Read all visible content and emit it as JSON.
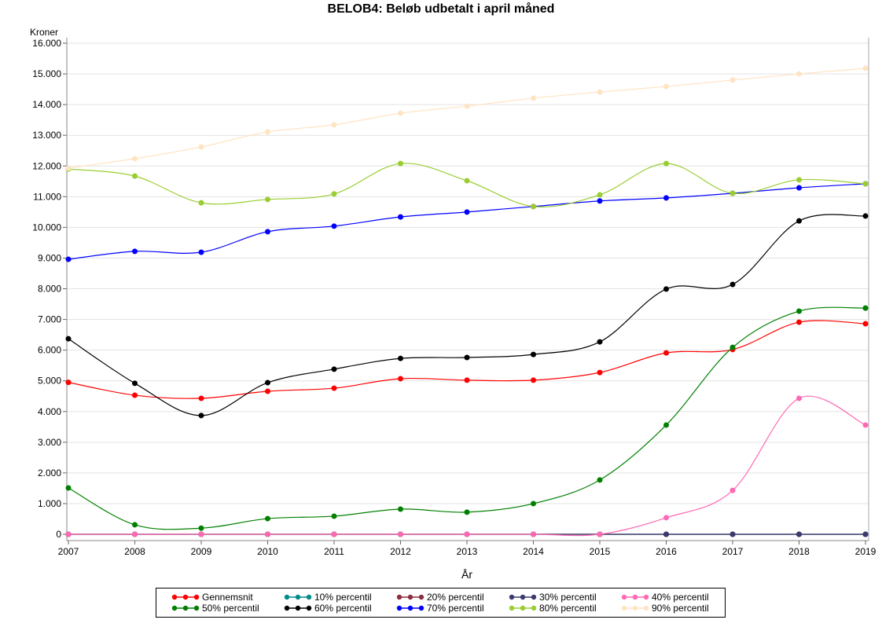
{
  "chart_data": {
    "type": "line",
    "title": "BELOB4: Beløb udbetalt i april måned",
    "xlabel": "År",
    "ylabel": "Kroner",
    "x": [
      2007,
      2008,
      2009,
      2010,
      2011,
      2012,
      2013,
      2014,
      2015,
      2016,
      2017,
      2018,
      2019
    ],
    "ylim": [
      0,
      16000
    ],
    "yticks": [
      0,
      1000,
      2000,
      3000,
      4000,
      5000,
      6000,
      7000,
      8000,
      9000,
      10000,
      11000,
      12000,
      13000,
      14000,
      15000,
      16000
    ],
    "ytick_labels": [
      "0",
      "1.000",
      "2.000",
      "3.000",
      "4.000",
      "5.000",
      "6.000",
      "7.000",
      "8.000",
      "9.000",
      "10.000",
      "11.000",
      "12.000",
      "13.000",
      "14.000",
      "15.000",
      "16.000"
    ],
    "grid": true,
    "smoothed": true,
    "legend_position": "bottom",
    "series": [
      {
        "name": "Gennemsnit",
        "color": "#ff0000",
        "values": [
          4950,
          4530,
          4430,
          4660,
          4760,
          5070,
          5020,
          5020,
          5270,
          5910,
          6020,
          6910,
          6860
        ]
      },
      {
        "name": "10% percentil",
        "color": "#008b8b",
        "values": [
          0,
          0,
          0,
          0,
          0,
          0,
          0,
          0,
          0,
          0,
          0,
          0,
          0
        ]
      },
      {
        "name": "20% percentil",
        "color": "#8b2e3f",
        "values": [
          0,
          0,
          0,
          0,
          0,
          0,
          0,
          0,
          0,
          0,
          0,
          0,
          0
        ]
      },
      {
        "name": "30% percentil",
        "color": "#3a3a6e",
        "values": [
          0,
          0,
          0,
          0,
          0,
          0,
          0,
          0,
          0,
          0,
          0,
          0,
          0
        ]
      },
      {
        "name": "40% percentil",
        "color": "#ff69b4",
        "values": [
          0,
          0,
          0,
          0,
          0,
          0,
          0,
          0,
          0,
          540,
          1430,
          4430,
          3560
        ]
      },
      {
        "name": "50% percentil",
        "color": "#008000",
        "values": [
          1510,
          310,
          200,
          510,
          590,
          820,
          720,
          1000,
          1770,
          3560,
          6090,
          7270,
          7370
        ]
      },
      {
        "name": "60% percentil",
        "color": "#000000",
        "values": [
          6370,
          4920,
          3870,
          4940,
          5380,
          5730,
          5760,
          5860,
          6270,
          7990,
          8140,
          10210,
          10370
        ]
      },
      {
        "name": "70% percentil",
        "color": "#0000ff",
        "values": [
          8960,
          9220,
          9190,
          9860,
          10040,
          10340,
          10500,
          10680,
          10860,
          10960,
          11110,
          11290,
          11420
        ]
      },
      {
        "name": "80% percentil",
        "color": "#9acd32",
        "values": [
          11900,
          11670,
          10800,
          10910,
          11090,
          12080,
          11520,
          10680,
          11060,
          12080,
          11110,
          11550,
          11420
        ]
      },
      {
        "name": "90% percentil",
        "color": "#ffe4c4",
        "values": [
          11930,
          12240,
          12620,
          13110,
          13340,
          13720,
          13950,
          14210,
          14410,
          14590,
          14800,
          15000,
          15180
        ]
      }
    ]
  }
}
